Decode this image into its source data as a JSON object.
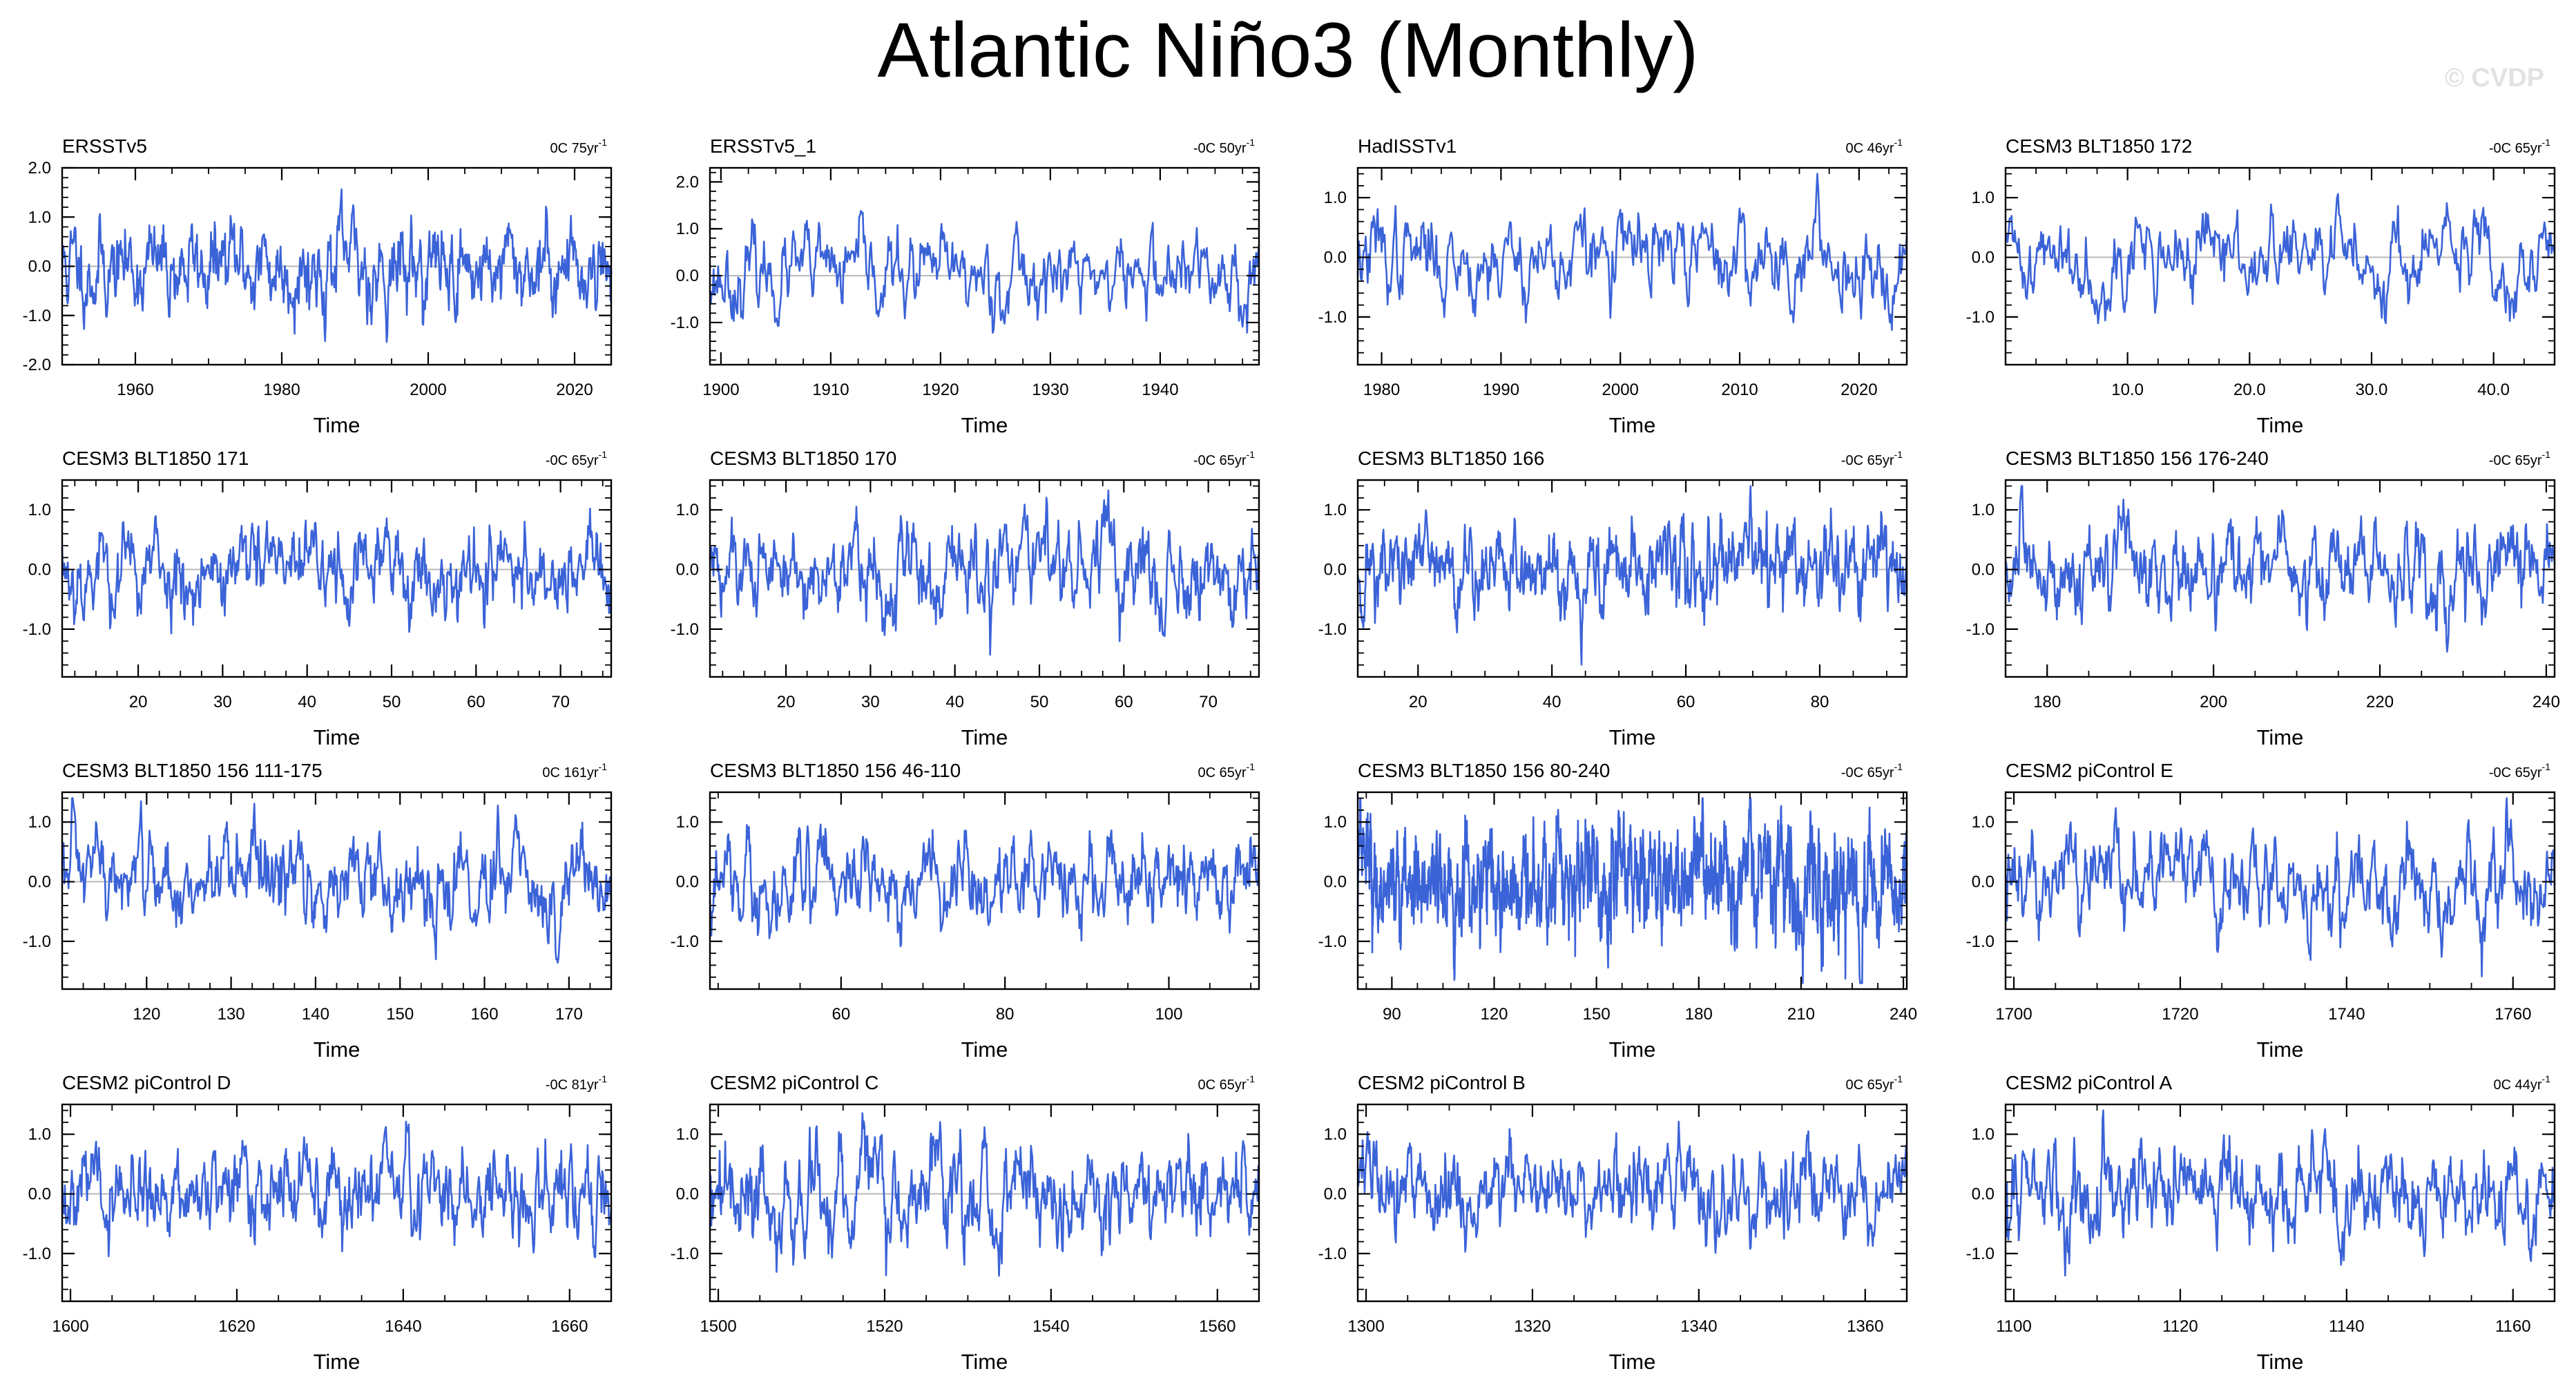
{
  "title": "Atlantic Niño3 (Monthly)",
  "watermark": "© CVDP",
  "colors": {
    "line": "#3b63d8",
    "zero_line": "#b8b8b8",
    "frame": "#000000"
  },
  "chart_data": [
    {
      "type": "line",
      "title": "ERSSTv5",
      "stat": "0C 75yr",
      "xlabel": "Time",
      "xlim": [
        1950,
        2025
      ],
      "ylim": [
        -2,
        2
      ],
      "xticks": [
        1960,
        1980,
        2000,
        2020
      ],
      "xtick_labels": [
        "1960",
        "1980",
        "2000",
        "2020"
      ],
      "yticks": [
        -2,
        -1,
        0,
        1,
        2
      ],
      "ytick_labels": [
        "-2.0",
        "-1.0",
        "0.0",
        "1.0",
        "2.0"
      ],
      "amp": 0.5,
      "seed": 11
    },
    {
      "type": "line",
      "title": "ERSSTv5_1",
      "stat": "-0C 50yr",
      "xlabel": "Time",
      "xlim": [
        1899,
        1949
      ],
      "ylim": [
        -1.9,
        2.3
      ],
      "xticks": [
        1900,
        1910,
        1920,
        1930,
        1940
      ],
      "xtick_labels": [
        "1900",
        "1910",
        "1920",
        "1930",
        "1940"
      ],
      "yticks": [
        -1,
        0,
        1,
        2
      ],
      "ytick_labels": [
        "-1.0",
        "0.0",
        "1.0",
        "2.0"
      ],
      "amp": 0.48,
      "seed": 23
    },
    {
      "type": "line",
      "title": "HadISSTv1",
      "stat": "0C 46yr",
      "xlabel": "Time",
      "xlim": [
        1978,
        2024
      ],
      "ylim": [
        -1.8,
        1.5
      ],
      "xticks": [
        1980,
        1990,
        2000,
        2010,
        2020
      ],
      "xtick_labels": [
        "1980",
        "1990",
        "2000",
        "2010",
        "2020"
      ],
      "yticks": [
        -1,
        0,
        1
      ],
      "ytick_labels": [
        "-1.0",
        "0.0",
        "1.0"
      ],
      "amp": 0.42,
      "seed": 37
    },
    {
      "type": "line",
      "title": "CESM3 BLT1850 172",
      "stat": "-0C 65yr",
      "xlabel": "Time",
      "xlim": [
        0,
        45
      ],
      "ylim": [
        -1.8,
        1.5
      ],
      "xticks": [
        10,
        20,
        30,
        40
      ],
      "xtick_labels": [
        "10.0",
        "20.0",
        "30.0",
        "40.0"
      ],
      "yticks": [
        -1,
        0,
        1
      ],
      "ytick_labels": [
        "-1.0",
        "0.0",
        "1.0"
      ],
      "amp": 0.4,
      "seed": 41
    },
    {
      "type": "line",
      "title": "CESM3 BLT1850 171",
      "stat": "-0C 65yr",
      "xlabel": "Time",
      "xlim": [
        11,
        76
      ],
      "ylim": [
        -1.8,
        1.5
      ],
      "xticks": [
        20,
        30,
        40,
        50,
        60,
        70
      ],
      "xtick_labels": [
        "20",
        "30",
        "40",
        "50",
        "60",
        "70"
      ],
      "yticks": [
        -1,
        0,
        1
      ],
      "ytick_labels": [
        "-1.0",
        "0.0",
        "1.0"
      ],
      "amp": 0.42,
      "seed": 53
    },
    {
      "type": "line",
      "title": "CESM3 BLT1850 170",
      "stat": "-0C 65yr",
      "xlabel": "Time",
      "xlim": [
        11,
        76
      ],
      "ylim": [
        -1.8,
        1.5
      ],
      "xticks": [
        20,
        30,
        40,
        50,
        60,
        70
      ],
      "xtick_labels": [
        "20",
        "30",
        "40",
        "50",
        "60",
        "70"
      ],
      "yticks": [
        -1,
        0,
        1
      ],
      "ytick_labels": [
        "-1.0",
        "0.0",
        "1.0"
      ],
      "amp": 0.42,
      "seed": 61
    },
    {
      "type": "line",
      "title": "CESM3 BLT1850 166",
      "stat": "-0C 65yr",
      "xlabel": "Time",
      "xlim": [
        11,
        93
      ],
      "ylim": [
        -1.8,
        1.5
      ],
      "xticks": [
        20,
        40,
        60,
        80
      ],
      "xtick_labels": [
        "20",
        "40",
        "60",
        "80"
      ],
      "yticks": [
        -1,
        0,
        1
      ],
      "ytick_labels": [
        "-1.0",
        "0.0",
        "1.0"
      ],
      "amp": 0.42,
      "seed": 71
    },
    {
      "type": "line",
      "title": "CESM3 BLT1850 156 176-240",
      "stat": "-0C 65yr",
      "xlabel": "Time",
      "xlim": [
        175,
        241
      ],
      "ylim": [
        -1.8,
        1.5
      ],
      "xticks": [
        180,
        200,
        220,
        240
      ],
      "xtick_labels": [
        "180",
        "200",
        "220",
        "240"
      ],
      "yticks": [
        -1,
        0,
        1
      ],
      "ytick_labels": [
        "-1.0",
        "0.0",
        "1.0"
      ],
      "amp": 0.42,
      "seed": 83
    },
    {
      "type": "line",
      "title": "CESM3 BLT1850 156 111-175",
      "stat": "0C 161yr",
      "xlabel": "Time",
      "xlim": [
        110,
        175
      ],
      "ylim": [
        -1.8,
        1.5
      ],
      "xticks": [
        120,
        130,
        140,
        150,
        160,
        170
      ],
      "xtick_labels": [
        "120",
        "130",
        "140",
        "150",
        "160",
        "170"
      ],
      "yticks": [
        -1,
        0,
        1
      ],
      "ytick_labels": [
        "-1.0",
        "0.0",
        "1.0"
      ],
      "amp": 0.44,
      "seed": 97
    },
    {
      "type": "line",
      "title": "CESM3 BLT1850 156 46-110",
      "stat": "0C 65yr",
      "xlabel": "Time",
      "xlim": [
        44,
        111
      ],
      "ylim": [
        -1.8,
        1.5
      ],
      "xticks": [
        60,
        80,
        100
      ],
      "xtick_labels": [
        "60",
        "80",
        "100"
      ],
      "yticks": [
        -1,
        0,
        1
      ],
      "ytick_labels": [
        "-1.0",
        "0.0",
        "1.0"
      ],
      "amp": 0.4,
      "seed": 103
    },
    {
      "type": "line",
      "title": "CESM3 BLT1850 156 80-240",
      "stat": "-0C 65yr",
      "xlabel": "Time",
      "xlim": [
        80,
        241
      ],
      "ylim": [
        -1.8,
        1.5
      ],
      "xticks": [
        90,
        120,
        150,
        180,
        210,
        240
      ],
      "xtick_labels": [
        "90",
        "120",
        "150",
        "180",
        "210",
        "240"
      ],
      "yticks": [
        -1,
        0,
        1
      ],
      "ytick_labels": [
        "-1.0",
        "0.0",
        "1.0"
      ],
      "amp": 0.5,
      "seed": 113
    },
    {
      "type": "line",
      "title": "CESM2 piControl E",
      "stat": "-0C 65yr",
      "xlabel": "Time",
      "xlim": [
        1699,
        1765
      ],
      "ylim": [
        -1.8,
        1.5
      ],
      "xticks": [
        1700,
        1720,
        1740,
        1760
      ],
      "xtick_labels": [
        "1700",
        "1720",
        "1740",
        "1760"
      ],
      "yticks": [
        -1,
        0,
        1
      ],
      "ytick_labels": [
        "-1.0",
        "0.0",
        "1.0"
      ],
      "amp": 0.42,
      "seed": 127
    },
    {
      "type": "line",
      "title": "CESM2 piControl D",
      "stat": "-0C 81yr",
      "xlabel": "Time",
      "xlim": [
        1599,
        1665
      ],
      "ylim": [
        -1.8,
        1.5
      ],
      "xticks": [
        1600,
        1620,
        1640,
        1660
      ],
      "xtick_labels": [
        "1600",
        "1620",
        "1640",
        "1660"
      ],
      "yticks": [
        -1,
        0,
        1
      ],
      "ytick_labels": [
        "-1.0",
        "0.0",
        "1.0"
      ],
      "amp": 0.42,
      "seed": 131
    },
    {
      "type": "line",
      "title": "CESM2 piControl C",
      "stat": "0C 65yr",
      "xlabel": "Time",
      "xlim": [
        1499,
        1565
      ],
      "ylim": [
        -1.8,
        1.5
      ],
      "xticks": [
        1500,
        1520,
        1540,
        1560
      ],
      "xtick_labels": [
        "1500",
        "1520",
        "1540",
        "1560"
      ],
      "yticks": [
        -1,
        0,
        1
      ],
      "ytick_labels": [
        "-1.0",
        "0.0",
        "1.0"
      ],
      "amp": 0.46,
      "seed": 139
    },
    {
      "type": "line",
      "title": "CESM2 piControl B",
      "stat": "0C 65yr",
      "xlabel": "Time",
      "xlim": [
        1299,
        1365
      ],
      "ylim": [
        -1.8,
        1.5
      ],
      "xticks": [
        1300,
        1320,
        1340,
        1360
      ],
      "xtick_labels": [
        "1300",
        "1320",
        "1340",
        "1360"
      ],
      "yticks": [
        -1,
        0,
        1
      ],
      "ytick_labels": [
        "-1.0",
        "0.0",
        "1.0"
      ],
      "amp": 0.42,
      "seed": 149
    },
    {
      "type": "line",
      "title": "CESM2 piControl A",
      "stat": "0C 44yr",
      "xlabel": "Time",
      "xlim": [
        1099,
        1165
      ],
      "ylim": [
        -1.8,
        1.5
      ],
      "xticks": [
        1100,
        1120,
        1140,
        1160
      ],
      "xtick_labels": [
        "1100",
        "1120",
        "1140",
        "1160"
      ],
      "yticks": [
        -1,
        0,
        1
      ],
      "ytick_labels": [
        "-1.0",
        "0.0",
        "1.0"
      ],
      "amp": 0.42,
      "seed": 157
    }
  ]
}
